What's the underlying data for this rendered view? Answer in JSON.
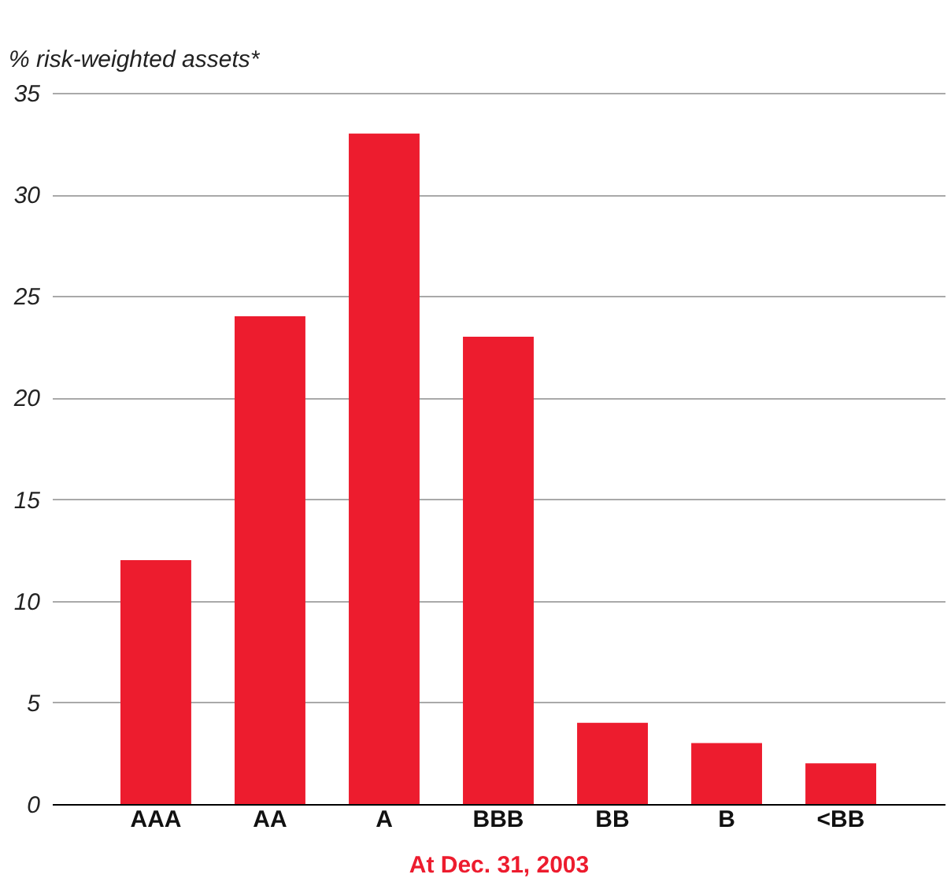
{
  "chart_data": {
    "type": "bar",
    "ylabel": "% risk-weighted assets*",
    "xlabel": "At Dec. 31, 2003",
    "categories": [
      "AAA",
      "AA",
      "A",
      "BBB",
      "BB",
      "B",
      "<BB"
    ],
    "values": [
      12,
      24,
      33,
      23,
      4,
      3,
      2
    ],
    "color": "#ed1c2e",
    "ylim": [
      0,
      35
    ],
    "yticks": [
      0,
      5,
      10,
      15,
      20,
      25,
      30,
      35
    ],
    "grid": "y"
  }
}
